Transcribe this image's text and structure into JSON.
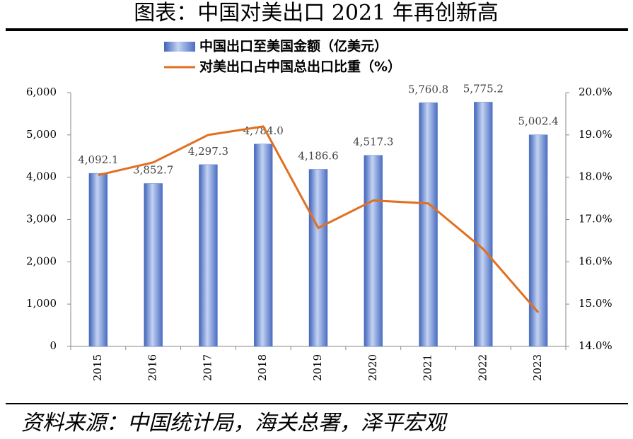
{
  "chart_data": {
    "type": "bar-line",
    "title": "图表：中国对美出口 2021 年再创新高",
    "source": "资料来源：中国统计局，海关总署，泽平宏观",
    "categories": [
      "2015",
      "2016",
      "2017",
      "2018",
      "2019",
      "2020",
      "2021",
      "2022",
      "2023"
    ],
    "series": [
      {
        "name": "中国出口至美国金额（亿美元）",
        "type": "bar",
        "color": "#5b7fd0",
        "values": [
          4092.1,
          3852.7,
          4297.3,
          4784.0,
          4186.6,
          4517.3,
          5760.8,
          5775.2,
          5002.4
        ],
        "value_labels": [
          "4,092.1",
          "3,852.7",
          "4,297.3",
          "4,784.0",
          "4,186.6",
          "4,517.3",
          "5,760.8",
          "5,775.2",
          "5,002.4"
        ]
      },
      {
        "name": "对美出口占中国总出口比重（%）",
        "type": "line",
        "axis": "y2",
        "color": "#e07020",
        "values": [
          18.05,
          18.35,
          19.0,
          19.2,
          16.8,
          17.45,
          17.38,
          16.3,
          14.8
        ]
      }
    ],
    "ylim": [
      0,
      6000
    ],
    "yticks": [
      0,
      {
        "value": 1000,
        "label": "1,000"
      },
      {
        "value": 2000,
        "label": "2,000"
      },
      {
        "value": 3000,
        "label": "3,000"
      },
      {
        "value": 4000,
        "label": "4,000"
      },
      {
        "value": 5000,
        "label": "5,000"
      },
      {
        "value": 6000,
        "label": "6,000"
      }
    ],
    "y2lim": [
      14,
      20
    ],
    "y2ticks": [
      {
        "value": 14,
        "label": "14.0%"
      },
      {
        "value": 15,
        "label": "15.0%"
      },
      {
        "value": 16,
        "label": "16.0%"
      },
      {
        "value": 17,
        "label": "17.0%"
      },
      {
        "value": 18,
        "label": "18.0%"
      },
      {
        "value": 19,
        "label": "19.0%"
      },
      {
        "value": 20,
        "label": "20.0%"
      }
    ]
  }
}
